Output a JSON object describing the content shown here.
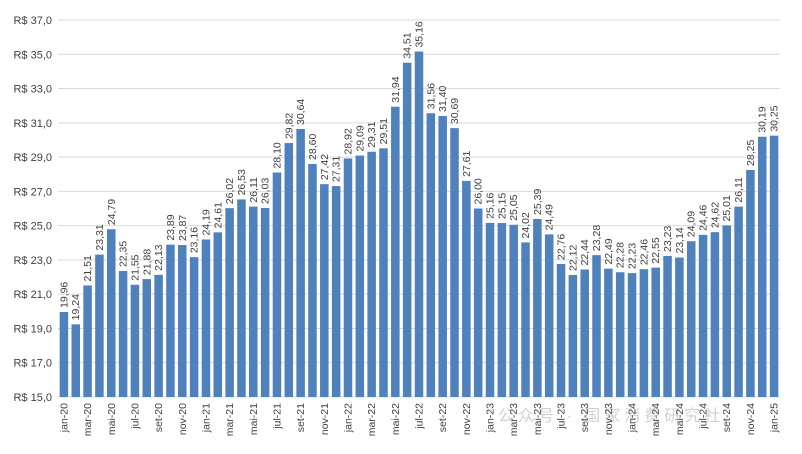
{
  "chart_data": {
    "type": "bar",
    "title": "",
    "xlabel": "",
    "ylabel": "",
    "ylim": [
      15.0,
      37.0
    ],
    "y_ticks": [
      "R$ 15,0",
      "R$ 17,0",
      "R$ 19,0",
      "R$ 21,0",
      "R$ 23,0",
      "R$ 25,0",
      "R$ 27,0",
      "R$ 29,0",
      "R$ 31,0",
      "R$ 33,0",
      "R$ 35,0",
      "R$ 37,0"
    ],
    "grid": true,
    "color": "#4f81bd",
    "categories": [
      "jan-20",
      "fev-20",
      "mar-20",
      "abr-20",
      "mai-20",
      "jun-20",
      "jul-20",
      "ago-20",
      "set-20",
      "out-20",
      "nov-20",
      "dez-20",
      "jan-21",
      "fev-21",
      "mar-21",
      "abr-21",
      "mai-21",
      "jun-21",
      "jul-21",
      "ago-21",
      "set-21",
      "out-21",
      "nov-21",
      "dez-21",
      "jan-22",
      "fev-22",
      "mar-22",
      "abr-22",
      "mai-22",
      "jun-22",
      "jul-22",
      "ago-22",
      "set-22",
      "out-22",
      "nov-22",
      "dez-22",
      "jan-23",
      "fev-23",
      "mar-23",
      "abr-23",
      "mai-23",
      "jun-23",
      "jul-23",
      "ago-23",
      "set-23",
      "out-23",
      "nov-23",
      "dez-23",
      "jan-24",
      "fev-24",
      "mar-24",
      "abr-24",
      "mai-24",
      "jun-24",
      "jul-24",
      "ago-24",
      "set-24",
      "out-24",
      "nov-24",
      "dez-24",
      "jan-25"
    ],
    "x_tick_labels": [
      "jan-20",
      "mar-20",
      "mai-20",
      "jul-20",
      "set-20",
      "nov-20",
      "jan-21",
      "mar-21",
      "mai-21",
      "jul-21",
      "set-21",
      "nov-21",
      "jan-22",
      "mar-22",
      "mai-22",
      "jul-22",
      "set-22",
      "nov-22",
      "jan-23",
      "mar-23",
      "mai-23",
      "jul-23",
      "set-23",
      "nov-23",
      "jan-24",
      "mar-24",
      "mai-24",
      "jul-24",
      "set-24",
      "nov-24",
      "jan-25"
    ],
    "values": [
      19.96,
      19.24,
      21.51,
      23.31,
      24.79,
      22.35,
      21.55,
      21.88,
      22.13,
      23.89,
      23.87,
      23.16,
      24.19,
      24.61,
      26.02,
      26.53,
      26.11,
      26.03,
      28.1,
      29.82,
      30.64,
      28.6,
      27.42,
      27.31,
      28.92,
      29.09,
      29.31,
      29.51,
      31.94,
      34.51,
      35.16,
      31.56,
      31.4,
      30.69,
      27.61,
      26.0,
      25.16,
      25.15,
      25.05,
      24.02,
      25.39,
      24.49,
      22.76,
      22.12,
      22.44,
      23.28,
      22.49,
      22.28,
      22.23,
      22.46,
      22.55,
      23.23,
      23.14,
      24.09,
      24.46,
      24.62,
      25.01,
      26.11,
      28.25,
      30.19,
      30.25
    ],
    "value_labels": [
      "19,96",
      "19,24",
      "21,51",
      "23,31",
      "24,79",
      "22,35",
      "21,55",
      "21,88",
      "22,13",
      "23,89",
      "23,87",
      "23,16",
      "24,19",
      "24,61",
      "26,02",
      "26,53",
      "26,11",
      "26,03",
      "28,10",
      "29,82",
      "30,64",
      "28,60",
      "27,42",
      "27,31",
      "28,92",
      "29,09",
      "29,31",
      "29,51",
      "31,94",
      "34,51",
      "35,16",
      "31,56",
      "31,40",
      "30,69",
      "27,61",
      "26,00",
      "25,16",
      "25,15",
      "25,05",
      "24,02",
      "25,39",
      "24,49",
      "22,76",
      "22,12",
      "22,44",
      "23,28",
      "22,49",
      "22,28",
      "22,23",
      "22,46",
      "22,55",
      "23,23",
      "23,14",
      "24,09",
      "24,46",
      "24,62",
      "25,01",
      "26,11",
      "28,25",
      "30,19",
      "30,25"
    ]
  },
  "watermark": "公众号 · 国家消费研究社"
}
